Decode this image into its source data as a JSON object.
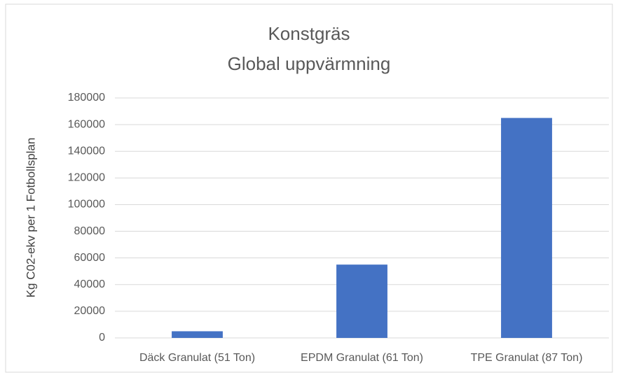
{
  "chart_data": {
    "type": "bar",
    "title": "Konstgräs",
    "subtitle": "Global uppvärmning",
    "y_label": "Kg C02-ekv per 1 Fotbollsplan",
    "categories": [
      "Däck Granulat (51 Ton)",
      "EPDM Granulat (61 Ton)",
      "TPE Granulat (87 Ton)"
    ],
    "values": [
      5000,
      55000,
      165000
    ],
    "color": "#4472c4",
    "ylim": [
      0,
      180000
    ],
    "yticks": [
      0,
      20000,
      40000,
      60000,
      80000,
      100000,
      120000,
      140000,
      160000,
      180000
    ],
    "grid": true
  }
}
